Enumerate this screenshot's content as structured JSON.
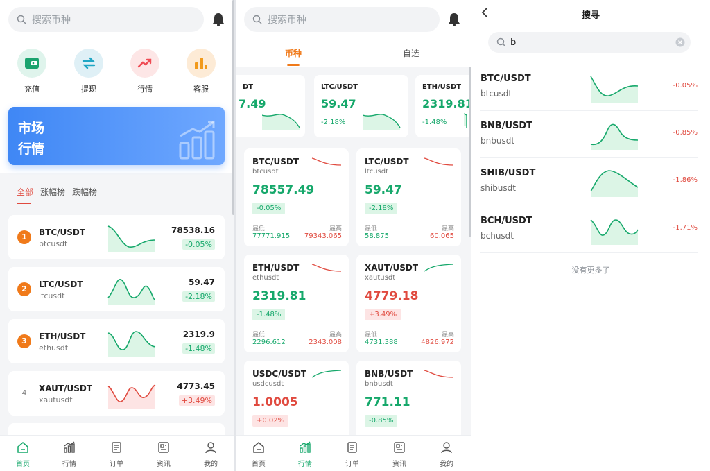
{
  "colors": {
    "accent_green": "#16a86b",
    "accent_red": "#e04a3f",
    "accent_orange": "#f07a1a",
    "banner_blue": "#3f87f5"
  },
  "home": {
    "search_placeholder": "搜索币种",
    "quick_actions": [
      {
        "label": "充值",
        "icon": "wallet-icon"
      },
      {
        "label": "提现",
        "icon": "transfer-icon"
      },
      {
        "label": "行情",
        "icon": "trend-icon"
      },
      {
        "label": "客服",
        "icon": "bar-chart-icon"
      }
    ],
    "banner": {
      "line1": "市场",
      "line2": "行情"
    },
    "tabs": [
      "全部",
      "涨幅榜",
      "跌幅榜"
    ],
    "list": [
      {
        "rank": "1",
        "symbol": "BTC/USDT",
        "code": "btcusdt",
        "price": "78538.16",
        "change": "-0.05%",
        "trend": "down"
      },
      {
        "rank": "2",
        "symbol": "LTC/USDT",
        "code": "ltcusdt",
        "price": "59.47",
        "change": "-2.18%",
        "trend": "down"
      },
      {
        "rank": "3",
        "symbol": "ETH/USDT",
        "code": "ethusdt",
        "price": "2319.9",
        "change": "-1.48%",
        "trend": "down"
      },
      {
        "rank": "4",
        "symbol": "XAUT/USDT",
        "code": "xautusdt",
        "price": "4773.45",
        "change": "+3.49%",
        "trend": "up"
      }
    ]
  },
  "tabbar": [
    "首页",
    "行情",
    "订单",
    "资讯",
    "我的"
  ],
  "market": {
    "search_placeholder": "搜索币种",
    "segments": [
      "币种",
      "自选"
    ],
    "mini_cards": [
      {
        "symbol": "DT",
        "price": "7.49",
        "change": ""
      },
      {
        "symbol": "LTC/USDT",
        "price": "59.47",
        "change": "-2.18%"
      },
      {
        "symbol": "ETH/USDT",
        "price": "2319.81",
        "change": "-1.48%"
      }
    ],
    "low_label": "最低",
    "high_label": "最高",
    "grid": [
      {
        "symbol": "BTC/USDT",
        "code": "btcusdt",
        "price": "78557.49",
        "change": "-0.05%",
        "low": "77771.915",
        "high": "79343.065",
        "dir": "down"
      },
      {
        "symbol": "LTC/USDT",
        "code": "ltcusdt",
        "price": "59.47",
        "change": "-2.18%",
        "low": "58.875",
        "high": "60.065",
        "dir": "down"
      },
      {
        "symbol": "ETH/USDT",
        "code": "ethusdt",
        "price": "2319.81",
        "change": "-1.48%",
        "low": "2296.612",
        "high": "2343.008",
        "dir": "down"
      },
      {
        "symbol": "XAUT/USDT",
        "code": "xautusdt",
        "price": "4779.18",
        "change": "+3.49%",
        "low": "4731.388",
        "high": "4826.972",
        "dir": "up"
      },
      {
        "symbol": "USDC/USDT",
        "code": "usdcusdt",
        "price": "1.0005",
        "change": "+0.02%",
        "dir": "up"
      },
      {
        "symbol": "BNB/USDT",
        "code": "bnbusdt",
        "price": "771.11",
        "change": "-0.85%",
        "dir": "down"
      }
    ]
  },
  "search": {
    "title": "搜寻",
    "query": "b",
    "results": [
      {
        "symbol": "BTC/USDT",
        "code": "btcusdt",
        "change": "-0.05%"
      },
      {
        "symbol": "BNB/USDT",
        "code": "bnbusdt",
        "change": "-0.85%"
      },
      {
        "symbol": "SHIB/USDT",
        "code": "shibusdt",
        "change": "-1.86%"
      },
      {
        "symbol": "BCH/USDT",
        "code": "bchusdt",
        "change": "-1.71%"
      }
    ],
    "no_more": "没有更多了"
  }
}
